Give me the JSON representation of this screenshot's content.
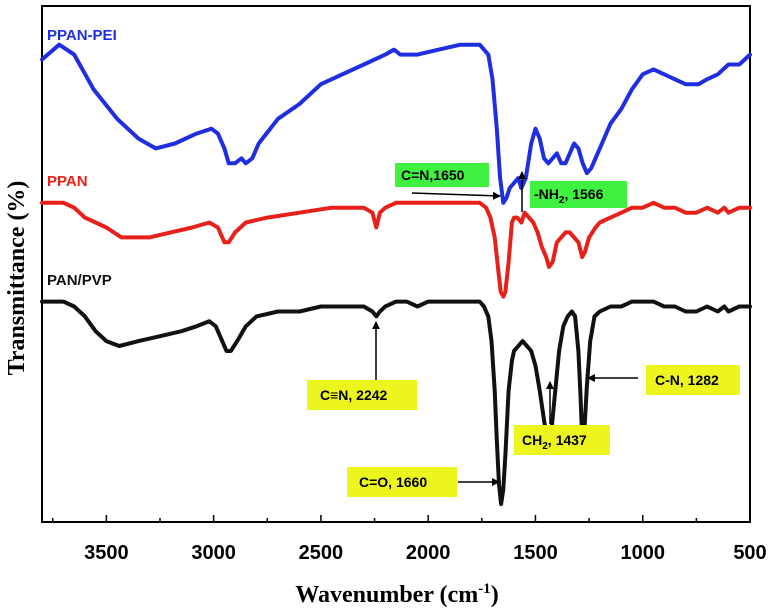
{
  "chart_data": {
    "type": "line",
    "title": "",
    "xlabel": "Wavenumber (cm",
    "xlabel_sup": "-1",
    "xlabel_end": ")",
    "ylabel": "Transmittance (%)",
    "xlim": [
      3800,
      500
    ],
    "ylim": [
      0,
      100
    ],
    "x_ticks": [
      3500,
      3000,
      2500,
      2000,
      1500,
      1000,
      500
    ],
    "grid": false,
    "series": [
      {
        "name": "PPAN-PEI",
        "color": "#1f2ee0",
        "points": [
          [
            3800,
            92
          ],
          [
            3720,
            95
          ],
          [
            3650,
            93
          ],
          [
            3560,
            86
          ],
          [
            3450,
            80
          ],
          [
            3350,
            76
          ],
          [
            3270,
            74
          ],
          [
            3180,
            75
          ],
          [
            3080,
            77
          ],
          [
            3010,
            78
          ],
          [
            2980,
            77
          ],
          [
            2950,
            74
          ],
          [
            2930,
            71
          ],
          [
            2900,
            71
          ],
          [
            2870,
            72
          ],
          [
            2850,
            71
          ],
          [
            2820,
            72
          ],
          [
            2790,
            75
          ],
          [
            2700,
            80
          ],
          [
            2600,
            83
          ],
          [
            2500,
            87
          ],
          [
            2400,
            89
          ],
          [
            2300,
            91
          ],
          [
            2200,
            93
          ],
          [
            2160,
            94
          ],
          [
            2130,
            93
          ],
          [
            2050,
            93
          ],
          [
            1950,
            94
          ],
          [
            1850,
            95
          ],
          [
            1760,
            95
          ],
          [
            1720,
            93
          ],
          [
            1700,
            88
          ],
          [
            1680,
            78
          ],
          [
            1665,
            68
          ],
          [
            1650,
            63
          ],
          [
            1635,
            64
          ],
          [
            1620,
            66
          ],
          [
            1600,
            67
          ],
          [
            1580,
            68
          ],
          [
            1566,
            66
          ],
          [
            1545,
            68
          ],
          [
            1520,
            75
          ],
          [
            1500,
            78
          ],
          [
            1480,
            76
          ],
          [
            1460,
            72
          ],
          [
            1440,
            71
          ],
          [
            1420,
            72
          ],
          [
            1400,
            73
          ],
          [
            1380,
            71
          ],
          [
            1360,
            71
          ],
          [
            1340,
            73
          ],
          [
            1320,
            75
          ],
          [
            1300,
            74
          ],
          [
            1280,
            71
          ],
          [
            1260,
            69
          ],
          [
            1240,
            70
          ],
          [
            1220,
            72
          ],
          [
            1200,
            74
          ],
          [
            1150,
            79
          ],
          [
            1100,
            82
          ],
          [
            1050,
            86
          ],
          [
            1000,
            89
          ],
          [
            950,
            90
          ],
          [
            900,
            89
          ],
          [
            850,
            88
          ],
          [
            800,
            87
          ],
          [
            770,
            87
          ],
          [
            740,
            87
          ],
          [
            700,
            88
          ],
          [
            650,
            89
          ],
          [
            600,
            91
          ],
          [
            550,
            91
          ],
          [
            500,
            93
          ]
        ]
      },
      {
        "name": "PPAN",
        "color": "#e8201a",
        "points": [
          [
            3800,
            63
          ],
          [
            3700,
            63
          ],
          [
            3650,
            62
          ],
          [
            3600,
            60
          ],
          [
            3500,
            58
          ],
          [
            3430,
            56
          ],
          [
            3300,
            56
          ],
          [
            3200,
            57
          ],
          [
            3100,
            58
          ],
          [
            3020,
            59
          ],
          [
            2980,
            58
          ],
          [
            2950,
            55
          ],
          [
            2930,
            55
          ],
          [
            2900,
            57
          ],
          [
            2850,
            59
          ],
          [
            2750,
            60
          ],
          [
            2600,
            61
          ],
          [
            2450,
            62
          ],
          [
            2300,
            62
          ],
          [
            2260,
            61
          ],
          [
            2242,
            58
          ],
          [
            2225,
            61
          ],
          [
            2200,
            62
          ],
          [
            2150,
            63
          ],
          [
            2100,
            63
          ],
          [
            2000,
            63
          ],
          [
            1900,
            63
          ],
          [
            1800,
            63
          ],
          [
            1760,
            63
          ],
          [
            1730,
            62
          ],
          [
            1710,
            60
          ],
          [
            1690,
            56
          ],
          [
            1675,
            50
          ],
          [
            1662,
            45
          ],
          [
            1650,
            44
          ],
          [
            1640,
            45
          ],
          [
            1625,
            51
          ],
          [
            1610,
            59
          ],
          [
            1600,
            60
          ],
          [
            1585,
            60
          ],
          [
            1566,
            59
          ],
          [
            1550,
            61
          ],
          [
            1530,
            60
          ],
          [
            1510,
            59
          ],
          [
            1490,
            57
          ],
          [
            1470,
            54
          ],
          [
            1450,
            52
          ],
          [
            1437,
            50
          ],
          [
            1420,
            51
          ],
          [
            1400,
            55
          ],
          [
            1380,
            56
          ],
          [
            1360,
            57
          ],
          [
            1340,
            57
          ],
          [
            1320,
            56
          ],
          [
            1300,
            55
          ],
          [
            1282,
            52
          ],
          [
            1270,
            53
          ],
          [
            1250,
            56
          ],
          [
            1220,
            58
          ],
          [
            1200,
            59
          ],
          [
            1150,
            60
          ],
          [
            1100,
            61
          ],
          [
            1050,
            62
          ],
          [
            1000,
            62
          ],
          [
            950,
            63
          ],
          [
            900,
            62
          ],
          [
            850,
            62
          ],
          [
            800,
            61
          ],
          [
            750,
            61
          ],
          [
            700,
            62
          ],
          [
            650,
            61
          ],
          [
            620,
            62
          ],
          [
            600,
            61
          ],
          [
            550,
            62
          ],
          [
            500,
            62
          ]
        ]
      },
      {
        "name": "PAN/PVP",
        "color": "#111111",
        "points": [
          [
            3800,
            43
          ],
          [
            3700,
            43
          ],
          [
            3650,
            42
          ],
          [
            3600,
            40
          ],
          [
            3550,
            37
          ],
          [
            3500,
            35
          ],
          [
            3440,
            34
          ],
          [
            3350,
            35
          ],
          [
            3250,
            36
          ],
          [
            3150,
            37
          ],
          [
            3080,
            38
          ],
          [
            3020,
            39
          ],
          [
            2990,
            38
          ],
          [
            2960,
            35
          ],
          [
            2940,
            33
          ],
          [
            2920,
            33
          ],
          [
            2890,
            35
          ],
          [
            2850,
            38
          ],
          [
            2800,
            40
          ],
          [
            2700,
            41
          ],
          [
            2600,
            41
          ],
          [
            2500,
            42
          ],
          [
            2400,
            42
          ],
          [
            2300,
            42
          ],
          [
            2260,
            41
          ],
          [
            2242,
            40
          ],
          [
            2225,
            41
          ],
          [
            2200,
            42
          ],
          [
            2150,
            43
          ],
          [
            2100,
            43
          ],
          [
            2050,
            42
          ],
          [
            2000,
            43
          ],
          [
            1900,
            43
          ],
          [
            1800,
            43
          ],
          [
            1760,
            43
          ],
          [
            1740,
            42
          ],
          [
            1720,
            40
          ],
          [
            1705,
            35
          ],
          [
            1690,
            25
          ],
          [
            1680,
            15
          ],
          [
            1670,
            6
          ],
          [
            1660,
            2
          ],
          [
            1650,
            5
          ],
          [
            1640,
            12
          ],
          [
            1625,
            25
          ],
          [
            1610,
            31
          ],
          [
            1600,
            33
          ],
          [
            1580,
            34
          ],
          [
            1560,
            35
          ],
          [
            1540,
            34
          ],
          [
            1520,
            33
          ],
          [
            1500,
            30
          ],
          [
            1480,
            25
          ],
          [
            1460,
            19
          ],
          [
            1445,
            15
          ],
          [
            1437,
            14
          ],
          [
            1425,
            17
          ],
          [
            1410,
            24
          ],
          [
            1390,
            33
          ],
          [
            1370,
            38
          ],
          [
            1350,
            40
          ],
          [
            1330,
            41
          ],
          [
            1315,
            40
          ],
          [
            1300,
            33
          ],
          [
            1290,
            24
          ],
          [
            1282,
            15
          ],
          [
            1272,
            17
          ],
          [
            1260,
            26
          ],
          [
            1245,
            35
          ],
          [
            1225,
            40
          ],
          [
            1200,
            41
          ],
          [
            1150,
            42
          ],
          [
            1100,
            42
          ],
          [
            1050,
            43
          ],
          [
            1000,
            43
          ],
          [
            950,
            43
          ],
          [
            900,
            42
          ],
          [
            850,
            42
          ],
          [
            800,
            41
          ],
          [
            750,
            41
          ],
          [
            700,
            42
          ],
          [
            650,
            41
          ],
          [
            620,
            42
          ],
          [
            600,
            41
          ],
          [
            550,
            42
          ],
          [
            500,
            42
          ]
        ]
      }
    ],
    "annotations": [
      {
        "text": "C=N,1650",
        "color": "#3ff23f"
      },
      {
        "text": "-NH",
        "sub": "2",
        "text_end": ", 1566",
        "color": "#3ff23f"
      },
      {
        "text": "C≡N, 2242",
        "color": "#ecf51e"
      },
      {
        "text": "CH",
        "sub": "2",
        "text_end": ", 1437",
        "color": "#ecf51e"
      },
      {
        "text": "C-N, 1282",
        "color": "#ecf51e"
      },
      {
        "text": "C=O, 1660",
        "color": "#ecf51e"
      }
    ]
  }
}
